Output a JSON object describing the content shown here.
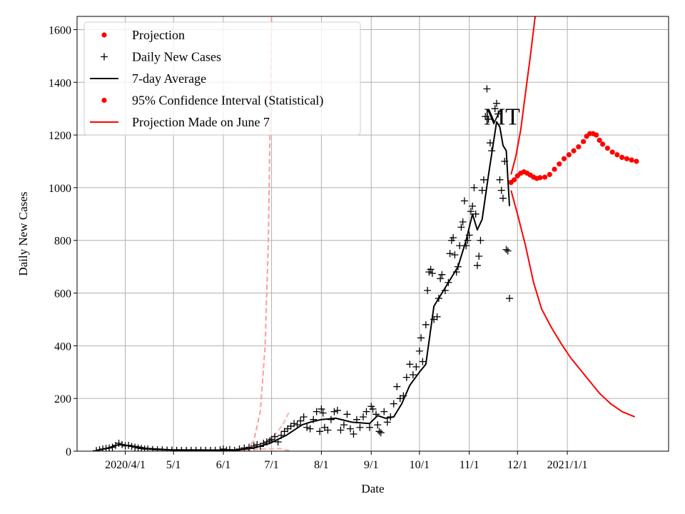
{
  "chart_data": {
    "type": "line",
    "title": "",
    "xlabel": "Date",
    "ylabel": "Daily New Cases",
    "annotation": "MT",
    "grid": true,
    "legend_position": "top-left",
    "xlim": [
      "2020-03-02",
      "2021-03-05"
    ],
    "ylim": [
      0,
      1650
    ],
    "x_ticks": [
      {
        "date": "2020-04-01",
        "label": "2020/4/1"
      },
      {
        "date": "2020-05-01",
        "label": "5/1"
      },
      {
        "date": "2020-06-01",
        "label": "6/1"
      },
      {
        "date": "2020-07-01",
        "label": "7/1"
      },
      {
        "date": "2020-08-01",
        "label": "8/1"
      },
      {
        "date": "2020-09-01",
        "label": "9/1"
      },
      {
        "date": "2020-10-01",
        "label": "10/1"
      },
      {
        "date": "2020-11-01",
        "label": "11/1"
      },
      {
        "date": "2020-12-01",
        "label": "12/1"
      },
      {
        "date": "2021-01-01",
        "label": "2021/1/1"
      }
    ],
    "y_ticks": [
      0,
      200,
      400,
      600,
      800,
      1000,
      1200,
      1400,
      1600
    ],
    "legend": [
      {
        "label": "Projection",
        "kind": "dot",
        "color": "#ff0000"
      },
      {
        "label": "Daily New Cases",
        "kind": "plus",
        "color": "#000000"
      },
      {
        "label": "7-day Average",
        "kind": "line",
        "color": "#000000"
      },
      {
        "label": "95% Confidence Interval (Statistical)",
        "kind": "dot",
        "color": "#ff0000"
      },
      {
        "label": "Projection Made on June 7",
        "kind": "line",
        "color": "#ff0000"
      }
    ],
    "series": [
      {
        "name": "Daily New Cases",
        "kind": "plus",
        "color": "#000000",
        "points": [
          [
            "2020-03-14",
            2
          ],
          [
            "2020-03-16",
            5
          ],
          [
            "2020-03-18",
            8
          ],
          [
            "2020-03-20",
            10
          ],
          [
            "2020-03-22",
            12
          ],
          [
            "2020-03-24",
            15
          ],
          [
            "2020-03-26",
            22
          ],
          [
            "2020-03-28",
            30
          ],
          [
            "2020-03-30",
            25
          ],
          [
            "2020-04-01",
            20
          ],
          [
            "2020-04-03",
            22
          ],
          [
            "2020-04-05",
            18
          ],
          [
            "2020-04-07",
            15
          ],
          [
            "2020-04-09",
            12
          ],
          [
            "2020-04-11",
            10
          ],
          [
            "2020-04-13",
            8
          ],
          [
            "2020-04-15",
            8
          ],
          [
            "2020-04-18",
            6
          ],
          [
            "2020-04-21",
            5
          ],
          [
            "2020-04-24",
            5
          ],
          [
            "2020-04-27",
            4
          ],
          [
            "2020-04-30",
            4
          ],
          [
            "2020-05-03",
            3
          ],
          [
            "2020-05-06",
            3
          ],
          [
            "2020-05-09",
            3
          ],
          [
            "2020-05-12",
            3
          ],
          [
            "2020-05-15",
            3
          ],
          [
            "2020-05-18",
            3
          ],
          [
            "2020-05-21",
            3
          ],
          [
            "2020-05-24",
            3
          ],
          [
            "2020-05-27",
            3
          ],
          [
            "2020-05-30",
            5
          ],
          [
            "2020-06-01",
            8
          ],
          [
            "2020-06-03",
            4
          ],
          [
            "2020-06-05",
            6
          ],
          [
            "2020-06-08",
            3
          ],
          [
            "2020-06-11",
            8
          ],
          [
            "2020-06-14",
            12
          ],
          [
            "2020-06-17",
            15
          ],
          [
            "2020-06-20",
            20
          ],
          [
            "2020-06-22",
            25
          ],
          [
            "2020-06-24",
            18
          ],
          [
            "2020-06-26",
            30
          ],
          [
            "2020-06-28",
            35
          ],
          [
            "2020-06-30",
            40
          ],
          [
            "2020-07-01",
            45
          ],
          [
            "2020-07-03",
            55
          ],
          [
            "2020-07-05",
            35
          ],
          [
            "2020-07-07",
            60
          ],
          [
            "2020-07-09",
            75
          ],
          [
            "2020-07-11",
            85
          ],
          [
            "2020-07-13",
            95
          ],
          [
            "2020-07-15",
            105
          ],
          [
            "2020-07-17",
            100
          ],
          [
            "2020-07-19",
            115
          ],
          [
            "2020-07-21",
            130
          ],
          [
            "2020-07-23",
            90
          ],
          [
            "2020-07-25",
            85
          ],
          [
            "2020-07-27",
            120
          ],
          [
            "2020-07-29",
            150
          ],
          [
            "2020-07-31",
            75
          ],
          [
            "2020-08-01",
            160
          ],
          [
            "2020-08-02",
            145
          ],
          [
            "2020-08-03",
            90
          ],
          [
            "2020-08-05",
            80
          ],
          [
            "2020-08-07",
            120
          ],
          [
            "2020-08-09",
            150
          ],
          [
            "2020-08-11",
            155
          ],
          [
            "2020-08-13",
            80
          ],
          [
            "2020-08-15",
            100
          ],
          [
            "2020-08-17",
            140
          ],
          [
            "2020-08-19",
            85
          ],
          [
            "2020-08-21",
            65
          ],
          [
            "2020-08-23",
            120
          ],
          [
            "2020-08-25",
            90
          ],
          [
            "2020-08-27",
            130
          ],
          [
            "2020-08-29",
            150
          ],
          [
            "2020-08-31",
            90
          ],
          [
            "2020-09-01",
            170
          ],
          [
            "2020-09-02",
            160
          ],
          [
            "2020-09-04",
            140
          ],
          [
            "2020-09-05",
            100
          ],
          [
            "2020-09-06",
            75
          ],
          [
            "2020-09-07",
            70
          ],
          [
            "2020-09-09",
            150
          ],
          [
            "2020-09-11",
            110
          ],
          [
            "2020-09-13",
            130
          ],
          [
            "2020-09-15",
            180
          ],
          [
            "2020-09-17",
            245
          ],
          [
            "2020-09-19",
            200
          ],
          [
            "2020-09-21",
            210
          ],
          [
            "2020-09-23",
            280
          ],
          [
            "2020-09-25",
            330
          ],
          [
            "2020-09-27",
            290
          ],
          [
            "2020-09-29",
            320
          ],
          [
            "2020-10-01",
            380
          ],
          [
            "2020-10-02",
            430
          ],
          [
            "2020-10-03",
            340
          ],
          [
            "2020-10-05",
            480
          ],
          [
            "2020-10-06",
            610
          ],
          [
            "2020-10-07",
            680
          ],
          [
            "2020-10-08",
            690
          ],
          [
            "2020-10-09",
            675
          ],
          [
            "2020-10-10",
            500
          ],
          [
            "2020-10-12",
            510
          ],
          [
            "2020-10-13",
            580
          ],
          [
            "2020-10-14",
            655
          ],
          [
            "2020-10-15",
            670
          ],
          [
            "2020-10-17",
            610
          ],
          [
            "2020-10-19",
            640
          ],
          [
            "2020-10-20",
            750
          ],
          [
            "2020-10-21",
            800
          ],
          [
            "2020-10-22",
            810
          ],
          [
            "2020-10-23",
            745
          ],
          [
            "2020-10-24",
            680
          ],
          [
            "2020-10-25",
            700
          ],
          [
            "2020-10-26",
            780
          ],
          [
            "2020-10-27",
            850
          ],
          [
            "2020-10-28",
            870
          ],
          [
            "2020-10-29",
            950
          ],
          [
            "2020-10-30",
            780
          ],
          [
            "2020-10-31",
            800
          ],
          [
            "2020-11-01",
            820
          ],
          [
            "2020-11-02",
            910
          ],
          [
            "2020-11-03",
            930
          ],
          [
            "2020-11-04",
            1000
          ],
          [
            "2020-11-05",
            900
          ],
          [
            "2020-11-06",
            705
          ],
          [
            "2020-11-07",
            740
          ],
          [
            "2020-11-08",
            800
          ],
          [
            "2020-11-09",
            990
          ],
          [
            "2020-11-10",
            1030
          ],
          [
            "2020-11-11",
            1270
          ],
          [
            "2020-11-12",
            1375
          ],
          [
            "2020-11-13",
            1260
          ],
          [
            "2020-11-14",
            1170
          ],
          [
            "2020-11-15",
            1140
          ],
          [
            "2020-11-17",
            1300
          ],
          [
            "2020-11-18",
            1320
          ],
          [
            "2020-11-19",
            1280
          ],
          [
            "2020-11-20",
            1030
          ],
          [
            "2020-11-21",
            990
          ],
          [
            "2020-11-22",
            960
          ],
          [
            "2020-11-23",
            1100
          ],
          [
            "2020-11-24",
            765
          ],
          [
            "2020-11-25",
            760
          ],
          [
            "2020-11-26",
            580
          ]
        ]
      },
      {
        "name": "7-day Average",
        "kind": "line",
        "color": "#000000",
        "points": [
          [
            "2020-03-14",
            3
          ],
          [
            "2020-03-20",
            10
          ],
          [
            "2020-03-28",
            25
          ],
          [
            "2020-04-05",
            20
          ],
          [
            "2020-04-15",
            10
          ],
          [
            "2020-04-30",
            5
          ],
          [
            "2020-05-31",
            4
          ],
          [
            "2020-06-10",
            5
          ],
          [
            "2020-06-20",
            12
          ],
          [
            "2020-06-30",
            30
          ],
          [
            "2020-07-10",
            60
          ],
          [
            "2020-07-20",
            100
          ],
          [
            "2020-07-25",
            110
          ],
          [
            "2020-08-01",
            120
          ],
          [
            "2020-08-10",
            125
          ],
          [
            "2020-08-20",
            110
          ],
          [
            "2020-08-31",
            105
          ],
          [
            "2020-09-05",
            135
          ],
          [
            "2020-09-10",
            125
          ],
          [
            "2020-09-15",
            130
          ],
          [
            "2020-09-20",
            180
          ],
          [
            "2020-09-25",
            250
          ],
          [
            "2020-10-01",
            300
          ],
          [
            "2020-10-05",
            330
          ],
          [
            "2020-10-10",
            550
          ],
          [
            "2020-10-15",
            600
          ],
          [
            "2020-10-20",
            650
          ],
          [
            "2020-10-25",
            700
          ],
          [
            "2020-10-30",
            800
          ],
          [
            "2020-11-03",
            900
          ],
          [
            "2020-11-06",
            840
          ],
          [
            "2020-11-09",
            880
          ],
          [
            "2020-11-13",
            1050
          ],
          [
            "2020-11-18",
            1250
          ],
          [
            "2020-11-20",
            1230
          ],
          [
            "2020-11-22",
            1160
          ],
          [
            "2020-11-24",
            1140
          ],
          [
            "2020-11-26",
            930
          ]
        ]
      },
      {
        "name": "Projection",
        "kind": "dot",
        "color": "#ff0000",
        "points": [
          [
            "2020-11-27",
            1020
          ],
          [
            "2020-11-29",
            1030
          ],
          [
            "2020-12-01",
            1045
          ],
          [
            "2020-12-03",
            1055
          ],
          [
            "2020-12-05",
            1060
          ],
          [
            "2020-12-07",
            1055
          ],
          [
            "2020-12-09",
            1048
          ],
          [
            "2020-12-11",
            1040
          ],
          [
            "2020-12-13",
            1035
          ],
          [
            "2020-12-15",
            1038
          ],
          [
            "2020-12-18",
            1040
          ],
          [
            "2020-12-21",
            1050
          ],
          [
            "2020-12-24",
            1070
          ],
          [
            "2020-12-27",
            1090
          ],
          [
            "2020-12-30",
            1110
          ],
          [
            "2021-01-02",
            1125
          ],
          [
            "2021-01-05",
            1140
          ],
          [
            "2021-01-08",
            1155
          ],
          [
            "2021-01-11",
            1175
          ],
          [
            "2021-01-13",
            1195
          ],
          [
            "2021-01-15",
            1205
          ],
          [
            "2021-01-17",
            1205
          ],
          [
            "2021-01-19",
            1200
          ],
          [
            "2021-01-21",
            1180
          ],
          [
            "2021-01-23",
            1165
          ],
          [
            "2021-01-26",
            1150
          ],
          [
            "2021-01-29",
            1135
          ],
          [
            "2021-02-01",
            1125
          ],
          [
            "2021-02-04",
            1115
          ],
          [
            "2021-02-07",
            1110
          ],
          [
            "2021-02-10",
            1105
          ],
          [
            "2021-02-13",
            1100
          ]
        ]
      },
      {
        "name": "95% Confidence Interval (Statistical)",
        "kind": "line",
        "color": "#ff0000",
        "points": [
          [
            "2020-11-27",
            1050
          ],
          [
            "2020-11-30",
            1120
          ],
          [
            "2020-12-03",
            1220
          ],
          [
            "2020-12-06",
            1360
          ],
          [
            "2020-12-09",
            1500
          ],
          [
            "2020-12-12",
            1650
          ]
        ]
      },
      {
        "name": "95% Confidence Interval (Statistical) lower",
        "kind": "line",
        "color": "#ff0000",
        "points": [
          [
            "2020-11-27",
            990
          ],
          [
            "2020-12-01",
            900
          ],
          [
            "2020-12-06",
            780
          ],
          [
            "2020-12-11",
            640
          ],
          [
            "2020-12-16",
            540
          ],
          [
            "2020-12-22",
            470
          ],
          [
            "2020-12-28",
            410
          ],
          [
            "2021-01-03",
            355
          ],
          [
            "2021-01-09",
            310
          ],
          [
            "2021-01-15",
            265
          ],
          [
            "2021-01-21",
            220
          ],
          [
            "2021-01-28",
            180
          ],
          [
            "2021-02-04",
            150
          ],
          [
            "2021-02-12",
            130
          ]
        ]
      },
      {
        "name": "Projection Made on June 7",
        "kind": "dashed",
        "color": "#ff9a9a",
        "points": [
          [
            "2020-06-15",
            2
          ],
          [
            "2020-06-20",
            40
          ],
          [
            "2020-06-24",
            150
          ],
          [
            "2020-06-27",
            400
          ],
          [
            "2020-06-29",
            800
          ],
          [
            "2020-06-30",
            1200
          ],
          [
            "2020-07-01",
            1650
          ]
        ]
      },
      {
        "name": "Projection Made on June 7 (upper band)",
        "kind": "dashed",
        "color": "#ffb0b0",
        "points": [
          [
            "2020-06-10",
            0
          ],
          [
            "2020-06-20",
            15
          ],
          [
            "2020-06-30",
            40
          ],
          [
            "2020-07-08",
            100
          ],
          [
            "2020-07-12",
            150
          ]
        ]
      },
      {
        "name": "Projection Made on June 7 (lower band)",
        "kind": "dashed",
        "color": "#ffb0b0",
        "points": [
          [
            "2020-06-05",
            0
          ],
          [
            "2020-06-25",
            8
          ],
          [
            "2020-07-06",
            10
          ],
          [
            "2020-07-12",
            2
          ]
        ]
      }
    ]
  }
}
